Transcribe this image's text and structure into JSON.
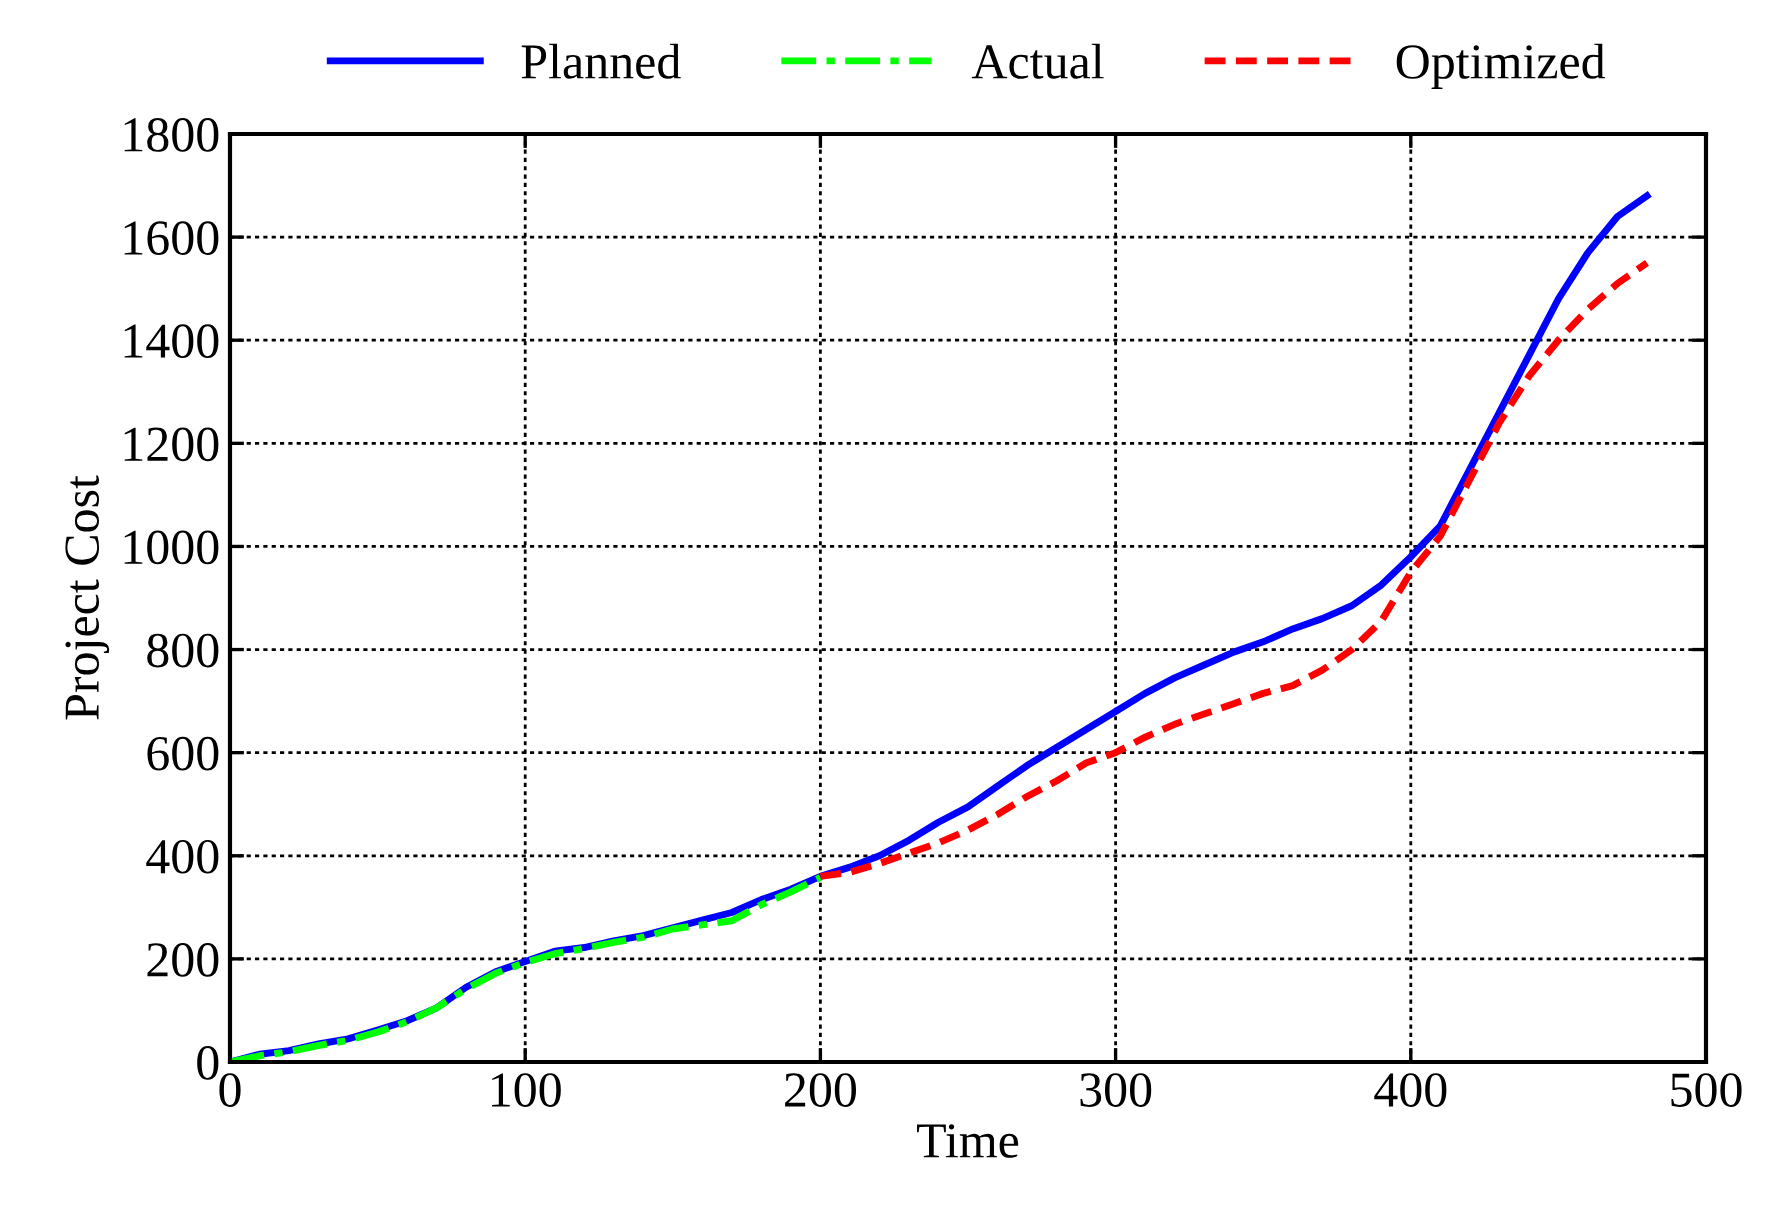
{
  "chart_data": {
    "type": "line",
    "xlabel": "Time",
    "ylabel": "Project Cost",
    "xlim": [
      0,
      500
    ],
    "xticks": [
      0,
      100,
      200,
      300,
      400,
      500
    ],
    "ylim": [
      0,
      1800
    ],
    "yticks": [
      0,
      200,
      400,
      600,
      800,
      1000,
      1200,
      1400,
      1600,
      1800
    ],
    "grid": true,
    "legend": "top",
    "series": [
      {
        "name": "Planned",
        "color": "#0000ff",
        "line_style": "solid",
        "x": [
          0,
          10,
          20,
          30,
          40,
          50,
          60,
          70,
          80,
          90,
          100,
          110,
          120,
          130,
          140,
          150,
          160,
          170,
          180,
          190,
          200,
          210,
          220,
          230,
          240,
          250,
          260,
          270,
          280,
          290,
          300,
          310,
          320,
          330,
          340,
          350,
          360,
          370,
          380,
          390,
          400,
          410,
          420,
          430,
          440,
          450,
          460,
          470,
          480
        ],
        "values": [
          0,
          15,
          22,
          35,
          45,
          62,
          80,
          105,
          145,
          175,
          195,
          215,
          222,
          235,
          245,
          260,
          275,
          290,
          315,
          335,
          360,
          378,
          400,
          430,
          465,
          495,
          535,
          575,
          610,
          645,
          680,
          715,
          745,
          770,
          795,
          815,
          840,
          860,
          885,
          925,
          980,
          1040,
          1150,
          1260,
          1370,
          1480,
          1570,
          1640,
          1680
        ]
      },
      {
        "name": "Actual",
        "color": "#00ff00",
        "line_style": "dashdot",
        "x": [
          0,
          10,
          20,
          30,
          40,
          50,
          60,
          70,
          80,
          90,
          100,
          110,
          120,
          130,
          140,
          150,
          160,
          170,
          180,
          190,
          200
        ],
        "values": [
          0,
          12,
          20,
          32,
          42,
          58,
          78,
          105,
          142,
          172,
          193,
          210,
          220,
          232,
          242,
          258,
          266,
          274,
          305,
          330,
          358
        ]
      },
      {
        "name": "Optimized",
        "color": "#ff0000",
        "line_style": "dashed",
        "x": [
          200,
          210,
          220,
          230,
          240,
          250,
          260,
          270,
          280,
          290,
          300,
          310,
          320,
          330,
          340,
          350,
          360,
          370,
          380,
          390,
          400,
          410,
          420,
          430,
          440,
          450,
          460,
          470,
          480
        ],
        "values": [
          360,
          368,
          385,
          405,
          425,
          450,
          480,
          515,
          545,
          580,
          600,
          630,
          655,
          675,
          695,
          715,
          730,
          760,
          800,
          855,
          950,
          1020,
          1130,
          1240,
          1330,
          1400,
          1460,
          1510,
          1550
        ]
      }
    ]
  }
}
